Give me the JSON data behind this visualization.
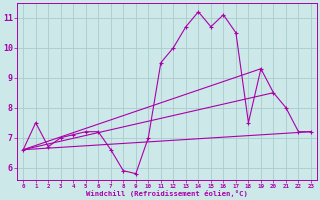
{
  "background_color": "#cce8e8",
  "grid_color": "#aacccc",
  "line_color": "#aa00aa",
  "xlabel": "Windchill (Refroidissement éolien,°C)",
  "ylabel_values": [
    6,
    7,
    8,
    9,
    10,
    11
  ],
  "xlim": [
    -0.5,
    23.5
  ],
  "ylim": [
    5.6,
    11.5
  ],
  "main_series": {
    "x": [
      0,
      1,
      2,
      3,
      4,
      5,
      6,
      7,
      8,
      9,
      10,
      11,
      12,
      13,
      14,
      15,
      16,
      17,
      18,
      19,
      20,
      21,
      22,
      23
    ],
    "y": [
      6.6,
      7.5,
      6.7,
      7.0,
      7.1,
      7.2,
      7.2,
      6.6,
      5.9,
      5.8,
      7.0,
      9.5,
      10.0,
      10.7,
      11.2,
      10.7,
      11.1,
      10.5,
      7.5,
      9.3,
      8.5,
      8.0,
      7.2,
      7.2
    ]
  },
  "trend_lines": [
    {
      "x": [
        0,
        23
      ],
      "y": [
        6.6,
        7.2
      ]
    },
    {
      "x": [
        0,
        19
      ],
      "y": [
        6.6,
        9.3
      ]
    },
    {
      "x": [
        0,
        20
      ],
      "y": [
        6.6,
        8.5
      ]
    }
  ],
  "xtick_labels": [
    "0",
    "1",
    "2",
    "3",
    "4",
    "5",
    "6",
    "7",
    "8",
    "9",
    "10",
    "11",
    "12",
    "13",
    "14",
    "15",
    "16",
    "17",
    "18",
    "19",
    "20",
    "21",
    "22",
    "23"
  ]
}
